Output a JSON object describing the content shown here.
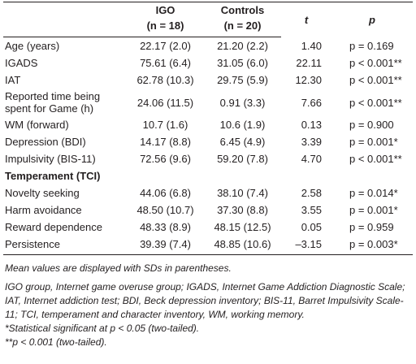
{
  "table": {
    "columns": [
      {
        "name": "IGO",
        "n": "(n = 18)"
      },
      {
        "name": "Controls",
        "n": "(n = 20)"
      },
      {
        "name": "t"
      },
      {
        "name": "p"
      }
    ],
    "rows": [
      {
        "label": "Age (years)",
        "cells": [
          "22.17 (2.0)",
          "21.20 (2.2)",
          "1.40",
          "p = 0.169"
        ]
      },
      {
        "label": "IGADS",
        "cells": [
          "75.61 (6.4)",
          "31.05 (6.0)",
          "22.11",
          "p < 0.001**"
        ]
      },
      {
        "label": "IAT",
        "cells": [
          "62.78 (10.3)",
          "29.75 (5.9)",
          "12.30",
          "p < 0.001**"
        ]
      },
      {
        "label": "Reported time being spent for Game (h)",
        "cells": [
          "24.06 (11.5)",
          "0.91 (3.3)",
          "7.66",
          "p < 0.001**"
        ]
      },
      {
        "label": "WM (forward)",
        "cells": [
          "10.7 (1.6)",
          "10.6 (1.9)",
          "0.13",
          "p = 0.900"
        ]
      },
      {
        "label": "Depression (BDI)",
        "cells": [
          "14.17 (8.8)",
          "6.45 (4.9)",
          "3.39",
          "p = 0.001*"
        ]
      },
      {
        "label": "Impulsivity (BIS-11)",
        "cells": [
          "72.56 (9.6)",
          "59.20 (7.8)",
          "4.70",
          "p < 0.001**"
        ]
      },
      {
        "section": "Temperament (TCI)"
      },
      {
        "label": "Novelty seeking",
        "cells": [
          "44.06 (6.8)",
          "38.10 (7.4)",
          "2.58",
          "p = 0.014*"
        ]
      },
      {
        "label": "Harm avoidance",
        "cells": [
          "48.50 (10.7)",
          "37.30 (8.8)",
          "3.55",
          "p = 0.001*"
        ]
      },
      {
        "label": "Reward dependence",
        "cells": [
          "48.33 (8.9)",
          "48.15 (12.5)",
          "0.05",
          "p = 0.959"
        ]
      },
      {
        "label": "Persistence",
        "cells": [
          "39.39 (7.4)",
          "48.85 (10.6)",
          "–3.15",
          "p = 0.003*"
        ]
      }
    ],
    "notes": [
      "Mean values are displayed with SDs in parentheses.",
      "IGO group, Internet game overuse group; IGADS, Internet Game Addiction Diagnostic Scale; IAT, Internet addiction test; BDI, Beck depression inventory; BIS-11, Barret Impulsivity Scale-11; TCI, temperament and character inventory, WM, working memory.",
      "*Statistical significant at p < 0.05 (two-tailed).",
      "**p < 0.001 (two-tailed)."
    ]
  }
}
